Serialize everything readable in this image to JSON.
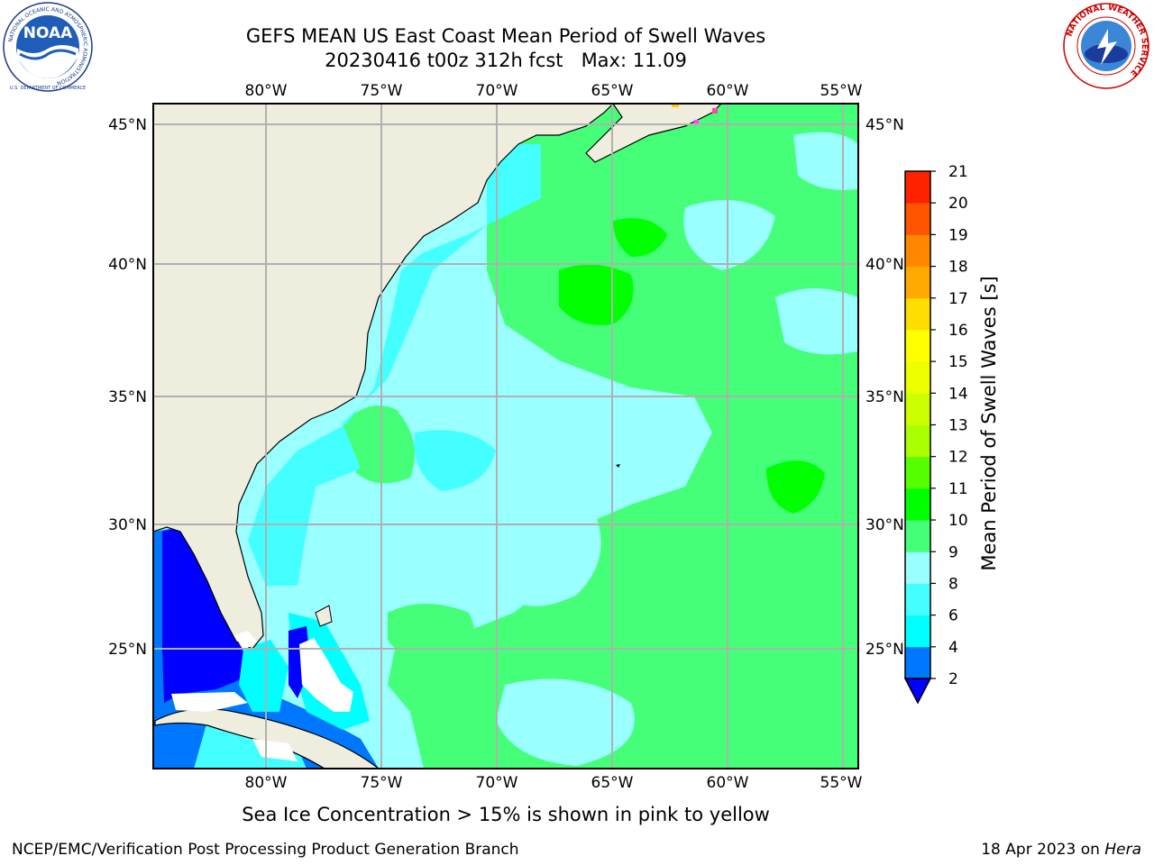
{
  "header": {
    "title_line1": "GEFS MEAN US East Coast Mean Period of Swell Waves",
    "title_line2": "20230416 t00z 312h fcst   Max: 11.09"
  },
  "logos": {
    "noaa": {
      "text": "NOAA",
      "ring_text": "NATIONAL OCEANIC AND ATMOSPHERIC ADMINISTRATION",
      "bottom_text": "U.S. DEPARTMENT OF COMMERCE"
    },
    "nws": {
      "ring_text": "NATIONAL WEATHER SERVICE"
    }
  },
  "map": {
    "lon_labels": [
      "80°W",
      "75°W",
      "70°W",
      "65°W",
      "60°W",
      "55°W"
    ],
    "lat_labels": [
      "45°N",
      "40°N",
      "35°N",
      "30°N",
      "25°N"
    ],
    "land_color": "#efedde",
    "ocean_colors": {
      "dark_blue": "#0000ff",
      "blue": "#0077ff",
      "cyan": "#00ffff",
      "light_cyan": "#44ffff",
      "pale_cyan": "#99ffff",
      "light_green": "#44ff77",
      "green": "#00ff00"
    },
    "grid_color": "#b0b0b0"
  },
  "colorbar": {
    "title": "Mean Period of Swell Waves [s]",
    "labels": [
      "2",
      "4",
      "6",
      "8",
      "9",
      "10",
      "11",
      "12",
      "13",
      "14",
      "15",
      "16",
      "17",
      "18",
      "19",
      "20",
      "21"
    ],
    "colors": [
      "#0077ff",
      "#00ffff",
      "#44ffff",
      "#99ffff",
      "#44ff77",
      "#00ff00",
      "#55ff00",
      "#aaff00",
      "#ccff00",
      "#eeff00",
      "#ffff00",
      "#ffdd00",
      "#ffaa00",
      "#ff8800",
      "#ff5500",
      "#ff2200"
    ],
    "under_color": "#0000ff"
  },
  "notes": {
    "ice_note": "Sea Ice Concentration > 15% is shown in pink to yellow"
  },
  "footer": {
    "left": "NCEP/EMC/Verification Post Processing Product Generation Branch",
    "right_date": "18 Apr 2023 on",
    "right_host": "Hera"
  }
}
